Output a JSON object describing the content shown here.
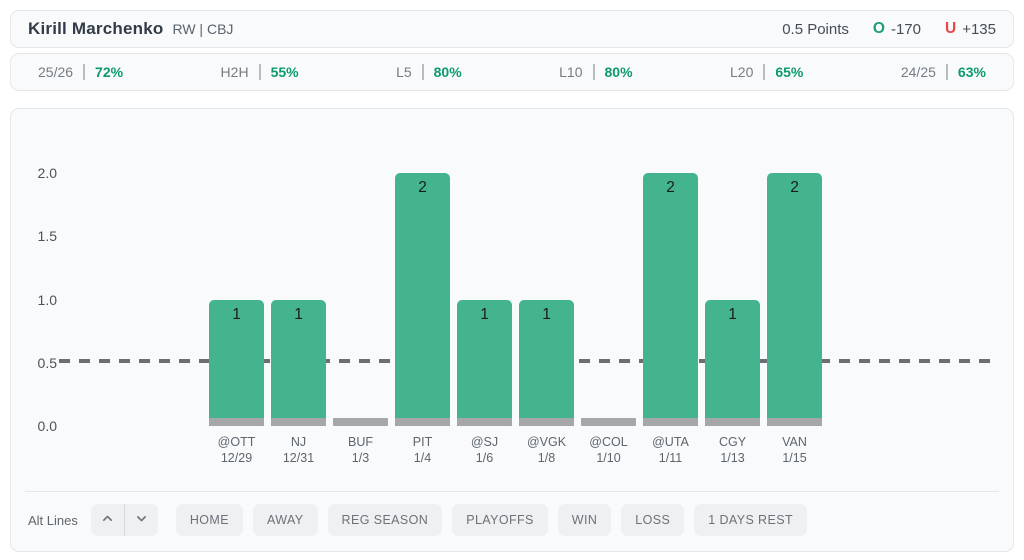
{
  "header": {
    "player_name": "Kirill Marchenko",
    "player_meta": "RW | CBJ",
    "line_label": "0.5 Points",
    "over": {
      "symbol": "O",
      "odds": "-170"
    },
    "under": {
      "symbol": "U",
      "odds": "+135"
    }
  },
  "stats": {
    "items": [
      {
        "label": "25/26",
        "value": "72%"
      },
      {
        "label": "H2H",
        "value": "55%"
      },
      {
        "label": "L5",
        "value": "80%"
      },
      {
        "label": "L10",
        "value": "80%"
      },
      {
        "label": "L20",
        "value": "65%"
      },
      {
        "label": "24/25",
        "value": "63%"
      }
    ]
  },
  "chart_data": {
    "type": "bar",
    "title": "",
    "xlabel": "",
    "ylabel": "",
    "categories": [
      {
        "team": "@OTT",
        "date": "12/29"
      },
      {
        "team": "NJ",
        "date": "12/31"
      },
      {
        "team": "BUF",
        "date": "1/3"
      },
      {
        "team": "PIT",
        "date": "1/4"
      },
      {
        "team": "@SJ",
        "date": "1/6"
      },
      {
        "team": "@VGK",
        "date": "1/8"
      },
      {
        "team": "@COL",
        "date": "1/10"
      },
      {
        "team": "@UTA",
        "date": "1/11"
      },
      {
        "team": "CGY",
        "date": "1/13"
      },
      {
        "team": "VAN",
        "date": "1/15"
      }
    ],
    "values": [
      1,
      1,
      0,
      2,
      1,
      1,
      0,
      2,
      1,
      2
    ],
    "yticks": [
      "0.0",
      "0.5",
      "1.0",
      "1.5",
      "2.0"
    ],
    "ylim": [
      0,
      2
    ],
    "reference_line": 0.5,
    "grid": false,
    "legend": "none",
    "colors": {
      "bar": "#43b48e",
      "zero_bar": "#a5a7a8",
      "reference_line": "#6a6f74",
      "hit_text": "#0d9b6c",
      "over_accent": "#1f9e73",
      "under_accent": "#e8484c"
    }
  },
  "toolbar": {
    "alt_lines_label": "Alt Lines",
    "stepper": {
      "up_icon": "chevron-up",
      "down_icon": "chevron-down"
    },
    "filters": [
      "HOME",
      "AWAY",
      "REG SEASON",
      "PLAYOFFS",
      "WIN",
      "LOSS",
      "1 DAYS REST"
    ]
  }
}
